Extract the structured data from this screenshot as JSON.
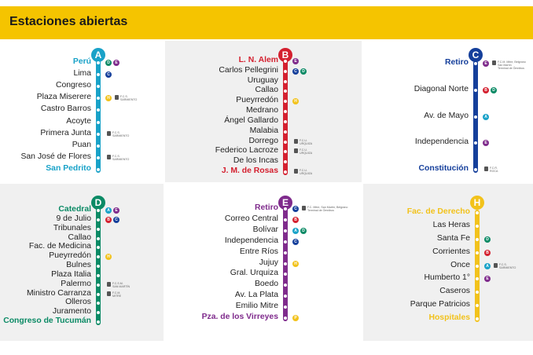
{
  "header": {
    "title": "Estaciones abiertas"
  },
  "colors": {
    "A": "#19a2c8",
    "B": "#d4202f",
    "C": "#153f9b",
    "D": "#0b8a65",
    "E": "#7f2b8c",
    "H": "#f2c21b",
    "panel_bg": "#f0f0f0"
  },
  "panels": [
    {
      "line": "A",
      "stations": [
        {
          "name": "Perú",
          "terminal": true,
          "conns": [
            "D",
            "E"
          ]
        },
        {
          "name": "Lima",
          "conns": [
            "C"
          ]
        },
        {
          "name": "Congreso"
        },
        {
          "name": "Plaza Miserere",
          "conns": [
            "H"
          ],
          "trains": [
            "F.C.S.",
            "SARMIENTO"
          ]
        },
        {
          "name": "Castro Barros"
        },
        {
          "name": "Acoyte"
        },
        {
          "name": "Primera Junta",
          "trains": [
            "F.C.S.",
            "SARMIENTO"
          ]
        },
        {
          "name": "Puan"
        },
        {
          "name": "San José de Flores",
          "trains": [
            "F.C.S.",
            "SARMIENTO"
          ]
        },
        {
          "name": "San Pedrito",
          "terminal": true
        }
      ]
    },
    {
      "line": "B",
      "stations": [
        {
          "name": "L. N. Alem",
          "terminal": true,
          "conns": [
            "E"
          ]
        },
        {
          "name": "Carlos Pellegrini",
          "conns": [
            "C",
            "D"
          ]
        },
        {
          "name": "Uruguay"
        },
        {
          "name": "Callao"
        },
        {
          "name": "Pueyrredón",
          "conns": [
            "H"
          ]
        },
        {
          "name": "Medrano"
        },
        {
          "name": "Ángel Gallardo"
        },
        {
          "name": "Malabia"
        },
        {
          "name": "Dorrego",
          "trains": [
            "F.C.U.",
            "URQUIZA"
          ]
        },
        {
          "name": "Federico Lacroze",
          "trains": [
            "F.C.U.",
            "URQUIZA"
          ]
        },
        {
          "name": "De los Incas"
        },
        {
          "name": "J. M. de Rosas",
          "terminal": true,
          "trains": [
            "F.C.U.",
            "URQUIZA"
          ]
        }
      ]
    },
    {
      "line": "C",
      "stations": [
        {
          "name": "Retiro",
          "terminal": true,
          "conns": [
            "E"
          ],
          "trains": [
            "F.C.M. Mitre, Belgrano",
            "San Martín",
            "Terminal de Ómnibus"
          ]
        },
        {
          "name": "Diagonal Norte",
          "conns": [
            "B",
            "D"
          ]
        },
        {
          "name": "Av. de Mayo",
          "conns": [
            "A"
          ]
        },
        {
          "name": "Independencia",
          "conns": [
            "E"
          ]
        },
        {
          "name": "Constitución",
          "terminal": true,
          "trains": [
            "F.C.R.",
            "ROCA"
          ]
        }
      ]
    },
    {
      "line": "D",
      "stations": [
        {
          "name": "Catedral",
          "terminal": true,
          "conns": [
            "A",
            "E"
          ]
        },
        {
          "name": "9 de Julio",
          "conns": [
            "B",
            "C"
          ]
        },
        {
          "name": "Tribunales"
        },
        {
          "name": "Callao"
        },
        {
          "name": "Fac. de Medicina"
        },
        {
          "name": "Pueyrredón",
          "conns": [
            "H"
          ]
        },
        {
          "name": "Bulnes"
        },
        {
          "name": "Plaza Italia"
        },
        {
          "name": "Palermo",
          "trains": [
            "F.C.S.M.",
            "SAN MARTÍN"
          ]
        },
        {
          "name": "Ministro Carranza",
          "trains": [
            "F.C.M.",
            "MITRE"
          ]
        },
        {
          "name": "Olleros"
        },
        {
          "name": "Juramento"
        },
        {
          "name": "Congreso de Tucumán",
          "terminal": true
        }
      ]
    },
    {
      "line": "E",
      "stations": [
        {
          "name": "Retiro",
          "terminal": true,
          "conns": [
            "C"
          ],
          "trains": [
            "F.C. Mitre, San Martín, Belgrano",
            "Terminal de Ómnibus"
          ]
        },
        {
          "name": "Correo Central",
          "conns": [
            "B"
          ]
        },
        {
          "name": "Bolívar",
          "conns": [
            "A",
            "D"
          ]
        },
        {
          "name": "Independencia",
          "conns": [
            "C"
          ]
        },
        {
          "name": "Entre Ríos"
        },
        {
          "name": "Jujuy",
          "conns": [
            "H"
          ]
        },
        {
          "name": "Gral. Urquiza"
        },
        {
          "name": "Boedo"
        },
        {
          "name": "Av. La Plata"
        },
        {
          "name": "Emilio Mitre"
        },
        {
          "name": "Pza. de los Virreyes",
          "terminal": true,
          "conns": [
            "P"
          ]
        }
      ]
    },
    {
      "line": "H",
      "stations": [
        {
          "name": "Fac. de Derecho",
          "terminal": true
        },
        {
          "name": "Las Heras"
        },
        {
          "name": "Santa Fe",
          "conns": [
            "D"
          ]
        },
        {
          "name": "Corrientes",
          "conns": [
            "B"
          ]
        },
        {
          "name": "Once",
          "conns": [
            "A"
          ],
          "trains": [
            "F.C.S.",
            "SARMIENTO"
          ]
        },
        {
          "name": "Humberto 1°",
          "conns": [
            "E"
          ]
        },
        {
          "name": "Caseros"
        },
        {
          "name": "Parque Patricios"
        },
        {
          "name": "Hospitales",
          "terminal": true
        }
      ]
    }
  ]
}
